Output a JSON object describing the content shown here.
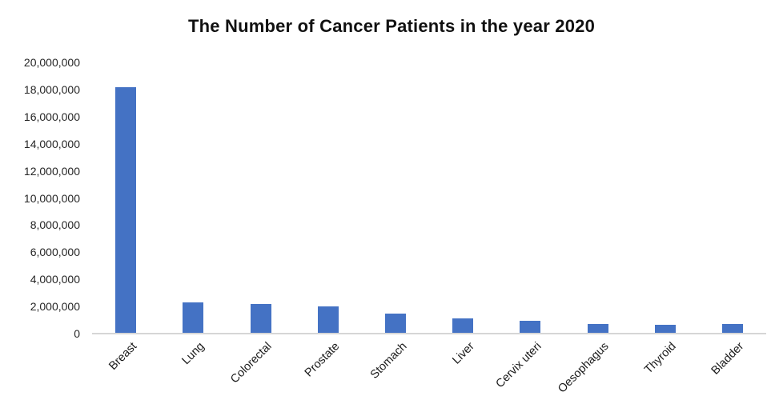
{
  "chart_data": {
    "type": "bar",
    "title": "The Number of Cancer Patients in the year 2020",
    "categories": [
      "Breast",
      "Lung",
      "Colorectal",
      "Prostate",
      "Stomach",
      "Liver",
      "Cervix uteri",
      "Oesophagus",
      "Thyroid",
      "Bladder"
    ],
    "values": [
      18100000,
      2250000,
      2150000,
      1950000,
      1400000,
      1050000,
      880000,
      640000,
      610000,
      630000
    ],
    "series_name": "Number of cancer patients",
    "xlabel": "",
    "ylabel": "",
    "ylim": [
      0,
      20000000
    ],
    "ytick_step": 2000000,
    "ytick_labels": [
      "0",
      "2,000,000",
      "4,000,000",
      "6,000,000",
      "8,000,000",
      "10,000,000",
      "12,000,000",
      "14,000,000",
      "16,000,000",
      "18,000,000",
      "20,000,000"
    ],
    "grid": false,
    "legend": false,
    "x_labels_rotation_deg": 45,
    "colors": {
      "bar": "#4472C4",
      "axis_line": "#D6D6D6",
      "tick_text": "#262626",
      "title_text": "#111111",
      "background": "#FFFFFF"
    }
  }
}
